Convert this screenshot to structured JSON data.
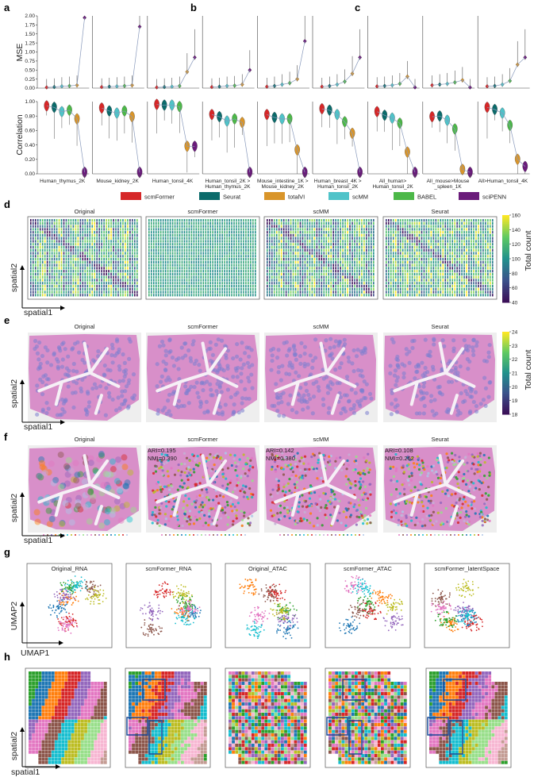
{
  "panel_labels": {
    "a": "a",
    "b": "b",
    "c": "c",
    "d": "d",
    "e": "e",
    "f": "f",
    "g": "g",
    "h": "h"
  },
  "colors": {
    "scmFormer": "#d62728",
    "Seurat": "#0b6b6b",
    "totalVI": "#d9952a",
    "scMM": "#4fc3c9",
    "BABEL": "#4cb848",
    "sciPENN": "#6a1b7a",
    "cmap_low": "#3b0f57",
    "cmap_mid": "#21918c",
    "cmap_high": "#fde725",
    "tissue": "#d88fc9",
    "tissue_dark": "#7b7fcf"
  },
  "chart_data": [
    {
      "type": "violin",
      "id": "mse_correlation",
      "ylabel_top": "MSE",
      "ylabel_bottom": "Correlation",
      "mse_ticks": [
        "0.00",
        "0.25",
        "0.50",
        "0.75",
        "1.00",
        "1.25",
        "1.50",
        "1.75",
        "2.00"
      ],
      "corr_ticks": [
        "0.00",
        "0.20",
        "0.40",
        "0.60",
        "0.80",
        "1.00"
      ],
      "methods": [
        "scmFormer",
        "Seurat",
        "totalVI",
        "scMM",
        "BABEL",
        "sciPENN"
      ],
      "datasets": [
        {
          "label_line1": "Human_thymus_2K",
          "label_line2": "",
          "methods": [
            "scmFormer",
            "Seurat",
            "scMM",
            "BABEL",
            "totalVI",
            "sciPENN"
          ],
          "mse": [
            0.02,
            0.03,
            0.05,
            0.06,
            0.08,
            1.95
          ],
          "corr": [
            0.94,
            0.92,
            0.86,
            0.88,
            0.76,
            0.02
          ]
        },
        {
          "label_line1": "Mouse_kidney_2K",
          "label_line2": "",
          "methods": [
            "scmFormer",
            "Seurat",
            "scMM",
            "BABEL",
            "totalVI",
            "sciPENN"
          ],
          "mse": [
            0.03,
            0.04,
            0.05,
            0.06,
            0.08,
            1.7
          ],
          "corr": [
            0.91,
            0.87,
            0.84,
            0.87,
            0.79,
            0.02
          ]
        },
        {
          "label_line1": "Human_tonsil_4K",
          "label_line2": "",
          "methods": [
            "scmFormer",
            "Seurat",
            "scMM",
            "BABEL",
            "totalVI",
            "sciPENN"
          ],
          "mse": [
            0.02,
            0.03,
            0.04,
            0.06,
            0.45,
            0.85
          ],
          "corr": [
            0.96,
            0.95,
            0.95,
            0.93,
            0.38,
            0.38
          ]
        },
        {
          "label_line1": "Human_tonsil_2K >",
          "label_line2": "Human_thymus_2K",
          "methods": [
            "scmFormer",
            "Seurat",
            "scMM",
            "BABEL",
            "totalVI",
            "sciPENN"
          ],
          "mse": [
            0.03,
            0.04,
            0.06,
            0.07,
            0.1,
            0.5
          ],
          "corr": [
            0.82,
            0.79,
            0.73,
            0.76,
            0.71,
            0.02
          ]
        },
        {
          "label_line1": "Mouse_intestine_1K >",
          "label_line2": "Mouse_kidney_2K",
          "methods": [
            "scmFormer",
            "Seurat",
            "scMM",
            "BABEL",
            "totalVI",
            "sciPENN"
          ],
          "mse": [
            0.04,
            0.06,
            0.1,
            0.14,
            0.25,
            1.3
          ],
          "corr": [
            0.82,
            0.78,
            0.76,
            0.76,
            0.33,
            0.02
          ]
        },
        {
          "label_line1": "Human_breast_4K >",
          "label_line2": "Human_tonsil_2K",
          "methods": [
            "scmFormer",
            "Seurat",
            "scMM",
            "BABEL",
            "totalVI",
            "sciPENN"
          ],
          "mse": [
            0.04,
            0.06,
            0.1,
            0.18,
            0.4,
            0.85
          ],
          "corr": [
            0.9,
            0.88,
            0.82,
            0.72,
            0.56,
            0.02
          ]
        },
        {
          "label_line1": "All_human>",
          "label_line2": "Human_tonsil_2K",
          "methods": [
            "scmFormer",
            "Seurat",
            "scMM",
            "BABEL",
            "totalVI",
            "sciPENN"
          ],
          "mse": [
            0.05,
            0.06,
            0.08,
            0.12,
            0.32,
            0.02
          ],
          "corr": [
            0.86,
            0.81,
            0.77,
            0.7,
            0.3,
            0.02
          ]
        },
        {
          "label_line1": "All_mouse>Mouse",
          "label_line2": "_spleen_1K",
          "methods": [
            "scmFormer",
            "Seurat",
            "scMM",
            "BABEL",
            "totalVI",
            "sciPENN"
          ],
          "mse": [
            0.08,
            0.1,
            0.12,
            0.16,
            0.22,
            0.02
          ],
          "corr": [
            0.79,
            0.8,
            0.74,
            0.62,
            0.06,
            0.02
          ]
        },
        {
          "label_line1": "All>Human_tonsil_4K",
          "label_line2": "",
          "methods": [
            "scmFormer",
            "Seurat",
            "scMM",
            "BABEL",
            "totalVI",
            "sciPENN"
          ],
          "mse": [
            0.05,
            0.06,
            0.1,
            0.2,
            0.65,
            0.85
          ],
          "corr": [
            0.92,
            0.89,
            0.84,
            0.67,
            0.2,
            0.1
          ]
        }
      ],
      "legend": [
        {
          "name": "scmFormer",
          "color": "#d62728"
        },
        {
          "name": "Seurat",
          "color": "#0b6b6b"
        },
        {
          "name": "totalVI",
          "color": "#d9952a"
        },
        {
          "name": "scMM",
          "color": "#4fc3c9"
        },
        {
          "name": "BABEL",
          "color": "#4cb848"
        },
        {
          "name": "sciPENN",
          "color": "#6a1b7a"
        }
      ]
    },
    {
      "type": "heatmap",
      "id": "spatial_total_count_d",
      "panels": [
        "Original",
        "scmFormer",
        "scMM",
        "Seurat"
      ],
      "colorbar_label": "Total count",
      "colorbar_ticks": [
        "160",
        "140",
        "120",
        "100",
        "80",
        "60",
        "40"
      ],
      "value_range": [
        40,
        160
      ],
      "xlabel": "spatial1",
      "ylabel": "spatial2"
    },
    {
      "type": "heatmap",
      "id": "tissue_total_count_e",
      "panels": [
        "Original",
        "scmFormer",
        "scMM",
        "Seurat"
      ],
      "colorbar_label": "Total count",
      "colorbar_ticks": [
        "24",
        "23",
        "22",
        "21",
        "20",
        "19",
        "18"
      ],
      "value_range": [
        18,
        24
      ],
      "xlabel": "spatial1",
      "ylabel": "spatial2"
    },
    {
      "type": "scatter",
      "id": "tissue_clusters_f",
      "panels": [
        "Original",
        "scmFormer",
        "scMM",
        "Seurat"
      ],
      "metrics": [
        {
          "panel": "scmFormer",
          "ari": "ARI=0.195",
          "nmi": "NMI=0.390"
        },
        {
          "panel": "scMM",
          "ari": "ARI=0.142",
          "nmi": "NMI=0.380"
        },
        {
          "panel": "Seurat",
          "ari": "ARI=0.108",
          "nmi": "NMI=0.262"
        }
      ],
      "xlabel": "spatial1",
      "ylabel": "spatial2"
    },
    {
      "type": "scatter",
      "id": "umap_g",
      "panels": [
        "Original_RNA",
        "scmFormer_RNA",
        "Original_ATAC",
        "scmFormer_ATAC",
        "scmFormer_latentSpace"
      ],
      "xlabel": "UMAP1",
      "ylabel": "UMAP2"
    },
    {
      "type": "heatmap",
      "id": "spatial_clusters_h",
      "panels": 5,
      "xlabel": "spatial1",
      "ylabel": "spatial2"
    }
  ]
}
